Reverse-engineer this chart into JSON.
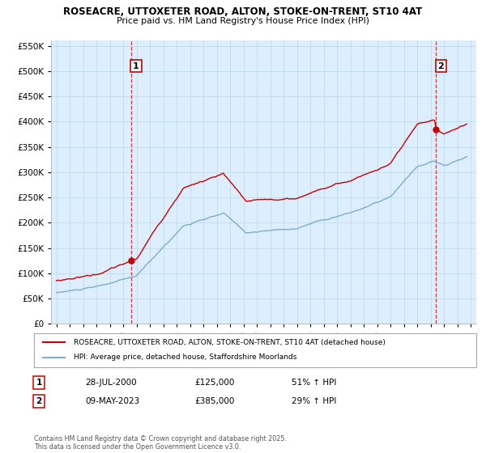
{
  "title": "ROSEACRE, UTTOXETER ROAD, ALTON, STOKE-ON-TRENT, ST10 4AT",
  "subtitle": "Price paid vs. HM Land Registry's House Price Index (HPI)",
  "red_label": "ROSEACRE, UTTOXETER ROAD, ALTON, STOKE-ON-TRENT, ST10 4AT (detached house)",
  "blue_label": "HPI: Average price, detached house, Staffordshire Moorlands",
  "annotation1_date": "28-JUL-2000",
  "annotation1_price": "£125,000",
  "annotation1_hpi": "51% ↑ HPI",
  "annotation2_date": "09-MAY-2023",
  "annotation2_price": "£385,000",
  "annotation2_hpi": "29% ↑ HPI",
  "copyright": "Contains HM Land Registry data © Crown copyright and database right 2025.\nThis data is licensed under the Open Government Licence v3.0.",
  "ylim": [
    0,
    560000
  ],
  "xlim_start": 1994.6,
  "xlim_end": 2026.4,
  "vline1_x": 2000.57,
  "vline2_x": 2023.36,
  "marker1_x": 2000.57,
  "marker1_y": 125000,
  "marker2_x": 2023.36,
  "marker2_y": 385000,
  "red_color": "#cc0000",
  "blue_color": "#7aadcf",
  "grid_color": "#c5ddf0",
  "background_color": "#ddeeff",
  "plot_bg_color": "#ffffff",
  "yticks": [
    0,
    50000,
    100000,
    150000,
    200000,
    250000,
    300000,
    350000,
    400000,
    450000,
    500000,
    550000
  ]
}
